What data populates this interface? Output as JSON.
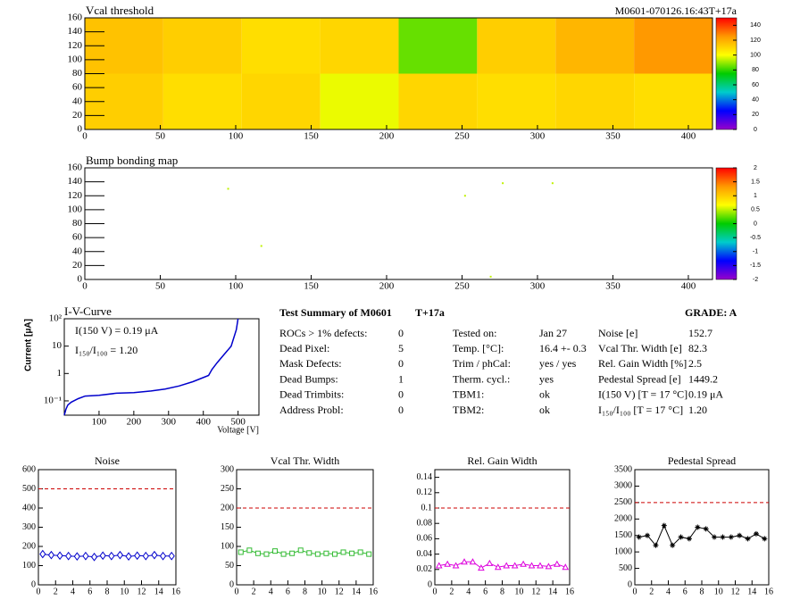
{
  "chart_data": [
    {
      "type": "heatmap",
      "title": "Vcal threshold",
      "label": "M0601-070126.16:43T+17a",
      "xbins": [
        0,
        52,
        104,
        156,
        208,
        260,
        312,
        364,
        416
      ],
      "ybins": [
        0,
        80,
        160
      ],
      "z": [
        [
          112,
          108,
          110,
          98,
          110,
          108,
          110,
          108
        ],
        [
          115,
          112,
          108,
          110,
          85,
          112,
          118,
          125
        ]
      ],
      "xlim": [
        0,
        416
      ],
      "ylim": [
        0,
        160
      ],
      "xticks": [
        0,
        50,
        100,
        150,
        200,
        250,
        300,
        350,
        400
      ],
      "yticks": [
        0,
        20,
        40,
        60,
        80,
        100,
        120,
        140,
        160
      ],
      "zlim": [
        0,
        150
      ],
      "zticks": [
        0,
        20,
        40,
        60,
        80,
        100,
        120,
        140
      ],
      "colorscale": [
        "#9900cc",
        "#0000ff",
        "#00cccc",
        "#00cc00",
        "#ffff00",
        "#ff9900",
        "#ff0000"
      ]
    },
    {
      "type": "scatter",
      "title": "Bump bonding map",
      "x": [
        95,
        117,
        252,
        277,
        310,
        269
      ],
      "y": [
        130,
        48,
        120,
        138,
        138,
        4
      ],
      "z": [
        0.5,
        0.5,
        0.5,
        0.5,
        0.5,
        0.5
      ],
      "xlim": [
        0,
        416
      ],
      "ylim": [
        0,
        160
      ],
      "xticks": [
        0,
        50,
        100,
        150,
        200,
        250,
        300,
        350,
        400
      ],
      "yticks": [
        0,
        20,
        40,
        60,
        80,
        100,
        120,
        140,
        160
      ],
      "zlim": [
        -2,
        2
      ],
      "zticks": [
        -2,
        -1.5,
        -1,
        -0.5,
        0,
        0.5,
        1,
        1.5,
        2
      ],
      "colorscale": [
        "#9900cc",
        "#0000ff",
        "#00cccc",
        "#00cc00",
        "#ffff00",
        "#ff9900",
        "#ff0000"
      ]
    },
    {
      "type": "line",
      "title": "I-V-Curve",
      "xlabel": "Voltage [V]",
      "ylabel": "Current [μA]",
      "color": "#0000cc",
      "log_y": true,
      "annotations": [
        "I(150 V) = 0.19 μA",
        "I₁₅₀/I₁₀₀ =  1.20"
      ],
      "x": [
        0,
        5,
        10,
        20,
        40,
        60,
        100,
        150,
        200,
        250,
        290,
        330,
        370,
        415,
        425,
        440,
        460,
        480,
        495,
        500
      ],
      "y": [
        0.03,
        0.05,
        0.07,
        0.09,
        0.12,
        0.15,
        0.16,
        0.19,
        0.2,
        0.23,
        0.27,
        0.35,
        0.5,
        0.85,
        1.4,
        2.5,
        5,
        10,
        40,
        100
      ],
      "xlim": [
        0,
        560
      ],
      "ylim": [
        0.03,
        100
      ],
      "xticks": [
        100,
        200,
        300,
        400,
        500
      ],
      "yticks": [
        {
          "value": 0.1,
          "label": "10⁻¹"
        },
        1,
        10,
        {
          "value": 100,
          "label": "10²"
        }
      ]
    },
    {
      "type": "line",
      "title": "Noise",
      "color": "#0000cc",
      "marker": "diamond",
      "threshold": 500,
      "threshold_color": "#cc0000",
      "x": [
        0.5,
        1.5,
        2.5,
        3.5,
        4.5,
        5.5,
        6.5,
        7.5,
        8.5,
        9.5,
        10.5,
        11.5,
        12.5,
        13.5,
        14.5,
        15.5
      ],
      "y": [
        160,
        155,
        152,
        150,
        148,
        150,
        145,
        152,
        150,
        155,
        148,
        152,
        150,
        155,
        150,
        150
      ],
      "xlim": [
        0,
        16
      ],
      "ylim": [
        0,
        600
      ],
      "xticks": [
        0,
        2,
        4,
        6,
        8,
        10,
        12,
        14,
        16
      ],
      "yticks": [
        0,
        100,
        200,
        300,
        400,
        500,
        600
      ]
    },
    {
      "type": "line",
      "title": "Vcal Thr. Width",
      "color": "#33bb33",
      "marker": "square",
      "threshold": 200,
      "threshold_color": "#cc0000",
      "x": [
        0.5,
        1.5,
        2.5,
        3.5,
        4.5,
        5.5,
        6.5,
        7.5,
        8.5,
        9.5,
        10.5,
        11.5,
        12.5,
        13.5,
        14.5,
        15.5
      ],
      "y": [
        85,
        90,
        82,
        80,
        88,
        80,
        82,
        90,
        83,
        80,
        82,
        80,
        85,
        82,
        85,
        80
      ],
      "xlim": [
        0,
        16
      ],
      "ylim": [
        0,
        300
      ],
      "xticks": [
        0,
        2,
        4,
        6,
        8,
        10,
        12,
        14,
        16
      ],
      "yticks": [
        0,
        50,
        100,
        150,
        200,
        250,
        300
      ]
    },
    {
      "type": "line",
      "title": "Rel. Gain Width",
      "color": "#dd00dd",
      "marker": "triangle",
      "threshold": 0.1,
      "threshold_color": "#cc0000",
      "x": [
        0.5,
        1.5,
        2.5,
        3.5,
        4.5,
        5.5,
        6.5,
        7.5,
        8.5,
        9.5,
        10.5,
        11.5,
        12.5,
        13.5,
        14.5,
        15.5
      ],
      "y": [
        0.025,
        0.027,
        0.025,
        0.03,
        0.03,
        0.022,
        0.028,
        0.023,
        0.025,
        0.025,
        0.027,
        0.025,
        0.025,
        0.024,
        0.027,
        0.023
      ],
      "xlim": [
        0,
        16
      ],
      "ylim": [
        0,
        0.15
      ],
      "xticks": [
        0,
        2,
        4,
        6,
        8,
        10,
        12,
        14,
        16
      ],
      "yticks": [
        0,
        0.02,
        0.04,
        0.06,
        0.08,
        0.1,
        0.12,
        0.14
      ]
    },
    {
      "type": "line",
      "title": "Pedestal Spread",
      "color": "#000000",
      "marker": "star",
      "threshold": 2500,
      "threshold_color": "#cc0000",
      "x": [
        0.5,
        1.5,
        2.5,
        3.5,
        4.5,
        5.5,
        6.5,
        7.5,
        8.5,
        9.5,
        10.5,
        11.5,
        12.5,
        13.5,
        14.5,
        15.5
      ],
      "y": [
        1450,
        1500,
        1200,
        1800,
        1200,
        1450,
        1400,
        1750,
        1700,
        1450,
        1450,
        1450,
        1500,
        1400,
        1550,
        1400
      ],
      "xlim": [
        0,
        16
      ],
      "ylim": [
        0,
        3500
      ],
      "xticks": [
        0,
        2,
        4,
        6,
        8,
        10,
        12,
        14,
        16
      ],
      "yticks": [
        0,
        500,
        1000,
        1500,
        2000,
        2500,
        3000,
        3500
      ]
    }
  ],
  "summary": {
    "title": "Test Summary of M0601",
    "tag": "T+17a",
    "grade": "GRADE:  A",
    "columns": [
      [
        [
          "ROCs > 1% defects:",
          "0"
        ],
        [
          "Dead Pixel:",
          "5"
        ],
        [
          "Mask Defects:",
          "0"
        ],
        [
          "Dead Bumps:",
          "1"
        ],
        [
          "Dead Trimbits:",
          "0"
        ],
        [
          "Address Probl:",
          "0"
        ]
      ],
      [
        [
          "Tested on:",
          "Jan 27"
        ],
        [
          "Temp. [°C]:",
          "16.4 +- 0.3"
        ],
        [
          "Trim / phCal:",
          "yes / yes"
        ],
        [
          "Therm. cycl.:",
          "yes"
        ],
        [
          "TBM1:",
          "ok"
        ],
        [
          "TBM2:",
          "ok"
        ]
      ],
      [
        [
          "Noise [e]",
          "152.7"
        ],
        [
          "Vcal Thr. Width [e]",
          "82.3"
        ],
        [
          "Rel. Gain Width [%]",
          "2.5"
        ],
        [
          "Pedestal Spread [e]",
          "1449.2"
        ],
        [
          "I(150 V) [T = 17 °C]",
          "0.19 μA"
        ],
        [
          "I₁₅₀/I₁₀₀  [T = 17 °C]",
          "1.20"
        ]
      ]
    ]
  }
}
